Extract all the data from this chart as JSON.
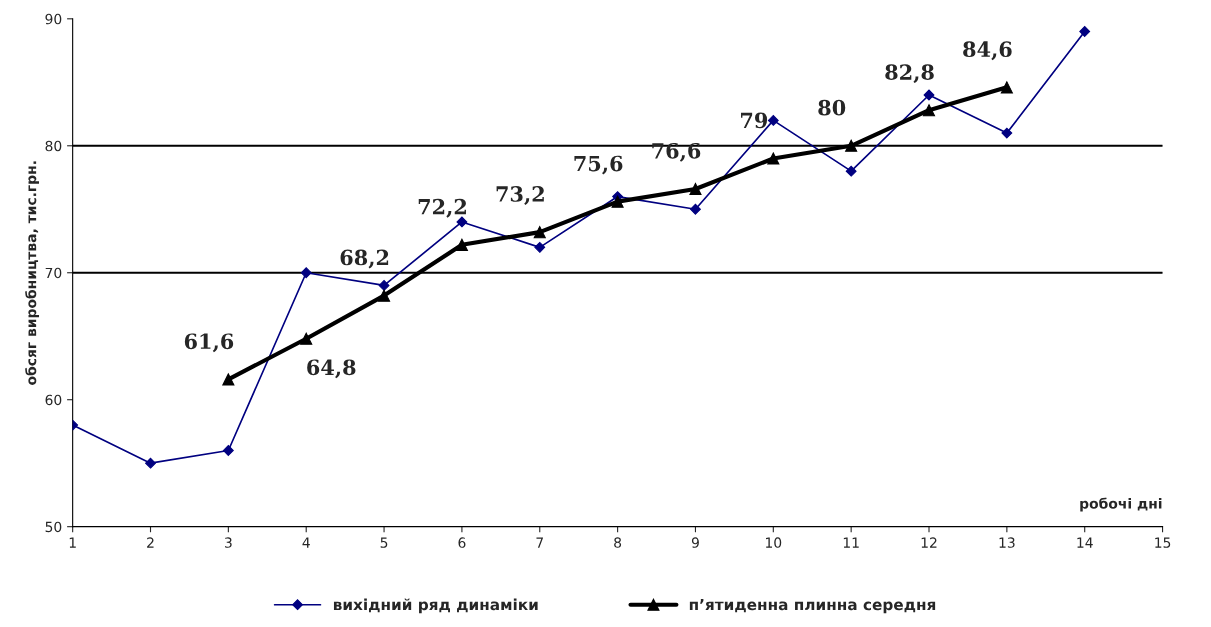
{
  "chart_data": {
    "type": "line",
    "xlabel": "робочі дні",
    "ylabel": "обсяг виробництва, тис.грн.",
    "xlim": [
      1,
      15
    ],
    "xticks": [
      1,
      2,
      3,
      4,
      5,
      6,
      7,
      8,
      9,
      10,
      11,
      12,
      13,
      14,
      15
    ],
    "ylim": [
      50,
      90
    ],
    "yticks": [
      50,
      60,
      70,
      80,
      90
    ],
    "series": [
      {
        "name": "вихідний ряд динаміки",
        "color": "#000080",
        "marker": "diamond",
        "x": [
          1,
          2,
          3,
          4,
          5,
          6,
          7,
          8,
          9,
          10,
          11,
          12,
          13,
          14
        ],
        "values": [
          58,
          55,
          56,
          70,
          69,
          74,
          72,
          76,
          75,
          82,
          78,
          84,
          81,
          89
        ]
      },
      {
        "name": "п’ятиденна плинна середня",
        "color": "#000000",
        "marker": "triangle",
        "data_labels": true,
        "x": [
          3,
          4,
          5,
          6,
          7,
          8,
          9,
          10,
          11,
          12,
          13
        ],
        "values": [
          61.6,
          64.8,
          68.2,
          72.2,
          73.2,
          75.6,
          76.6,
          79,
          80,
          82.8,
          84.6
        ],
        "value_labels": [
          "61,6",
          "64,8",
          "68,2",
          "72,2",
          "73,2",
          "75,6",
          "76,6",
          "79",
          "80",
          "82,8",
          "84,6"
        ]
      }
    ],
    "ref_lines": [
      {
        "axis": "y",
        "value": 70,
        "color": "#000000"
      },
      {
        "axis": "y",
        "value": 80,
        "color": "#000000"
      }
    ],
    "grid": false,
    "legend": "bottom"
  }
}
